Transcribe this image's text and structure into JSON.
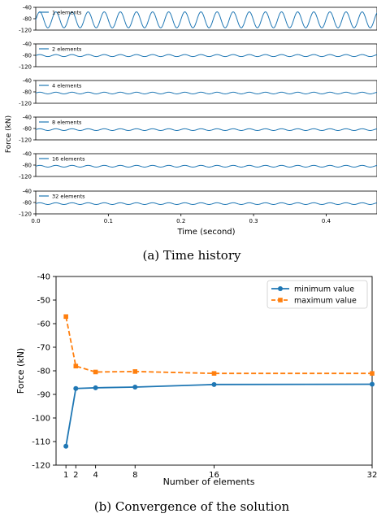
{
  "figure": {
    "caption_a": "(a)  Time history",
    "caption_b": "(b)  Convergence of the solution"
  },
  "chart_data": [
    {
      "type": "line",
      "title": "",
      "xlabel": "Time (second)",
      "ylabel": "Force (kN)",
      "xlim": [
        0.0,
        0.47
      ],
      "ylim": [
        -120,
        -40
      ],
      "x_ticks": [
        "0.0",
        "0.1",
        "0.2",
        "0.3",
        "0.4"
      ],
      "y_ticks": [
        "-40",
        "-80",
        "-120"
      ],
      "panels": [
        {
          "name": "1 elements",
          "mean": -84,
          "amplitude": 28,
          "period": 0.0222
        },
        {
          "name": "2 elements",
          "mean": -81,
          "amplitude": 3.5,
          "period": 0.0222
        },
        {
          "name": "4 elements",
          "mean": -84,
          "amplitude": 3,
          "period": 0.0222
        },
        {
          "name": "8 elements",
          "mean": -84,
          "amplitude": 3,
          "period": 0.0222
        },
        {
          "name": "16 elements",
          "mean": -84,
          "amplitude": 3,
          "period": 0.0222
        },
        {
          "name": "32 elements",
          "mean": -84,
          "amplitude": 3,
          "period": 0.0222
        }
      ],
      "color": "#1f77b4",
      "grid": false,
      "legend": "top-left"
    },
    {
      "type": "line",
      "title": "",
      "xlabel": "Number of elements",
      "ylabel": "Force (kN)",
      "x": [
        1,
        2,
        4,
        8,
        16,
        32
      ],
      "x_ticks": [
        "1",
        "2",
        "4",
        "8",
        "16",
        "32"
      ],
      "y_ticks": [
        "-40",
        "-50",
        "-60",
        "-70",
        "-80",
        "-90",
        "-100",
        "-110",
        "-120"
      ],
      "xlim": [
        0,
        32
      ],
      "ylim": [
        -120,
        -40
      ],
      "series": [
        {
          "name": "minimum value",
          "values": [
            -112,
            -87.5,
            -87.2,
            -86.9,
            -85.8,
            -85.7
          ],
          "color": "#1f77b4",
          "marker": "circle",
          "dash": "solid"
        },
        {
          "name": "maximum value",
          "values": [
            -57,
            -78,
            -80.5,
            -80.3,
            -81.1,
            -81.1
          ],
          "color": "#ff7f0e",
          "marker": "square",
          "dash": "dashed"
        }
      ],
      "grid": false,
      "legend": "top-right"
    }
  ]
}
